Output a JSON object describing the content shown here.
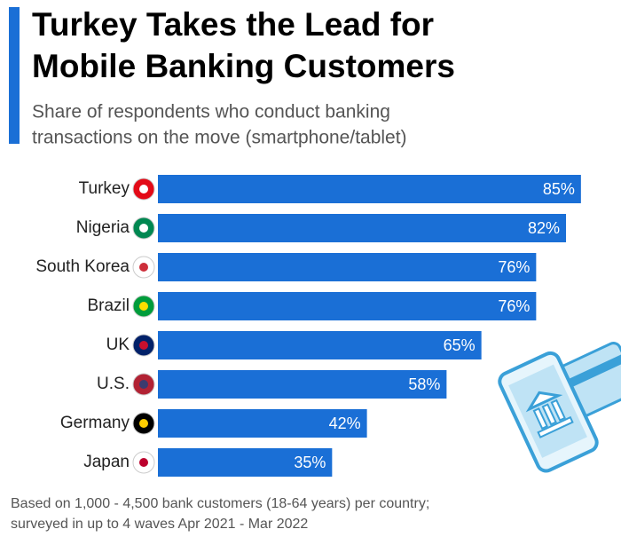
{
  "chart_data": {
    "type": "bar",
    "orientation": "horizontal",
    "title": [
      "Turkey Takes the Lead for",
      "Mobile Banking Customers"
    ],
    "subtitle": [
      "Share of respondents who conduct banking",
      "transactions on the move (smartphone/tablet)"
    ],
    "categories": [
      "Turkey",
      "Nigeria",
      "South Korea",
      "Brazil",
      "UK",
      "U.S.",
      "Germany",
      "Japan"
    ],
    "values": [
      85,
      82,
      76,
      76,
      65,
      58,
      42,
      35
    ],
    "value_labels": [
      "85%",
      "82%",
      "76%",
      "76%",
      "65%",
      "58%",
      "42%",
      "35%"
    ],
    "color": "#1a6fd6",
    "note": [
      "Based on 1,000 - 4,500 bank customers (18-64 years) per country;",
      "surveyed in up to 4 waves Apr 2021 - Mar 2022"
    ]
  }
}
